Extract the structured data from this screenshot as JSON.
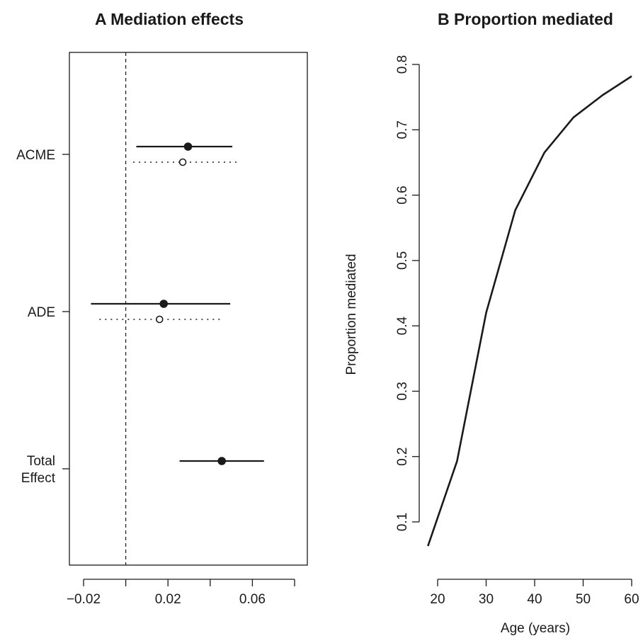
{
  "chart_data": [
    {
      "type": "scatter",
      "title": "A  Mediation effects",
      "xlim": [
        -0.025,
        0.08
      ],
      "x_ticks": [
        -0.02,
        0.02,
        0.06
      ],
      "x_tick_labels": [
        "−0.02",
        "0.02",
        "0.06"
      ],
      "x_minor_ticks": [
        0.0,
        0.04,
        0.08
      ],
      "reference_line_x": 0.0,
      "categories": [
        {
          "label_lines": [
            "ACME"
          ]
        },
        {
          "label_lines": [
            "ADE"
          ]
        },
        {
          "label_lines": [
            "Total",
            "Effect"
          ]
        }
      ],
      "intervals": [
        {
          "category": 0,
          "style": "solid",
          "marker": "filled",
          "estimate": 0.0295,
          "lower": 0.005,
          "upper": 0.0505
        },
        {
          "category": 0,
          "style": "dotted",
          "marker": "open",
          "estimate": 0.027,
          "lower": 0.0035,
          "upper": 0.0525
        },
        {
          "category": 1,
          "style": "solid",
          "marker": "filled",
          "estimate": 0.018,
          "lower": -0.0165,
          "upper": 0.0495
        },
        {
          "category": 1,
          "style": "dotted",
          "marker": "open",
          "estimate": 0.016,
          "lower": -0.0125,
          "upper": 0.0465
        },
        {
          "category": 2,
          "style": "solid",
          "marker": "filled",
          "estimate": 0.0455,
          "lower": 0.0255,
          "upper": 0.0655
        }
      ]
    },
    {
      "type": "line",
      "title": "B  Proportion mediated",
      "xlabel": "Age (years)",
      "ylabel": "Proportion mediated",
      "xlim": [
        18,
        60
      ],
      "ylim": [
        0.05,
        0.8
      ],
      "x_ticks": [
        20,
        30,
        40,
        50,
        60
      ],
      "y_ticks": [
        0.1,
        0.2,
        0.3,
        0.4,
        0.5,
        0.6,
        0.7,
        0.8
      ],
      "x": [
        18,
        24,
        30,
        36,
        42,
        48,
        54,
        60
      ],
      "y": [
        0.063,
        0.193,
        0.42,
        0.577,
        0.665,
        0.719,
        0.753,
        0.782
      ]
    }
  ]
}
